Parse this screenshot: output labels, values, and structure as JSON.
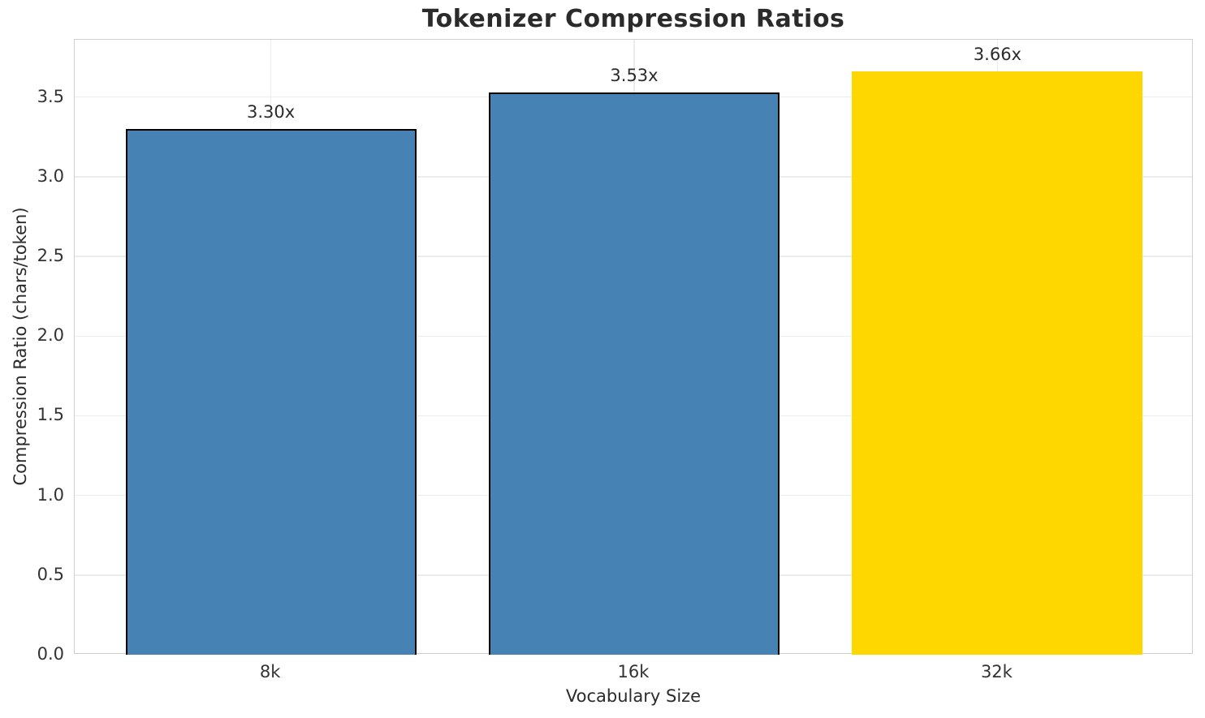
{
  "chart_data": {
    "type": "bar",
    "title": "Tokenizer Compression Ratios",
    "xlabel": "Vocabulary Size",
    "ylabel": "Compression Ratio (chars/token)",
    "categories": [
      "8k",
      "16k",
      "32k"
    ],
    "values": [
      3.3,
      3.53,
      3.66
    ],
    "bar_labels": [
      "3.30x",
      "3.53x",
      "3.66x"
    ],
    "bar_colors": [
      "#4682B4",
      "#4682B4",
      "#FFD700"
    ],
    "bar_edge_colors": [
      "#000000",
      "#000000",
      "none"
    ],
    "ylim": [
      0,
      3.86
    ],
    "yticks": [
      0.0,
      0.5,
      1.0,
      1.5,
      2.0,
      2.5,
      3.0,
      3.5
    ],
    "ytick_labels": [
      "0.0",
      "0.5",
      "1.0",
      "1.5",
      "2.0",
      "2.5",
      "3.0",
      "3.5"
    ],
    "grid": true,
    "grid_color": "#ececec",
    "spine_color": "#cfcfcf",
    "legend": null
  }
}
